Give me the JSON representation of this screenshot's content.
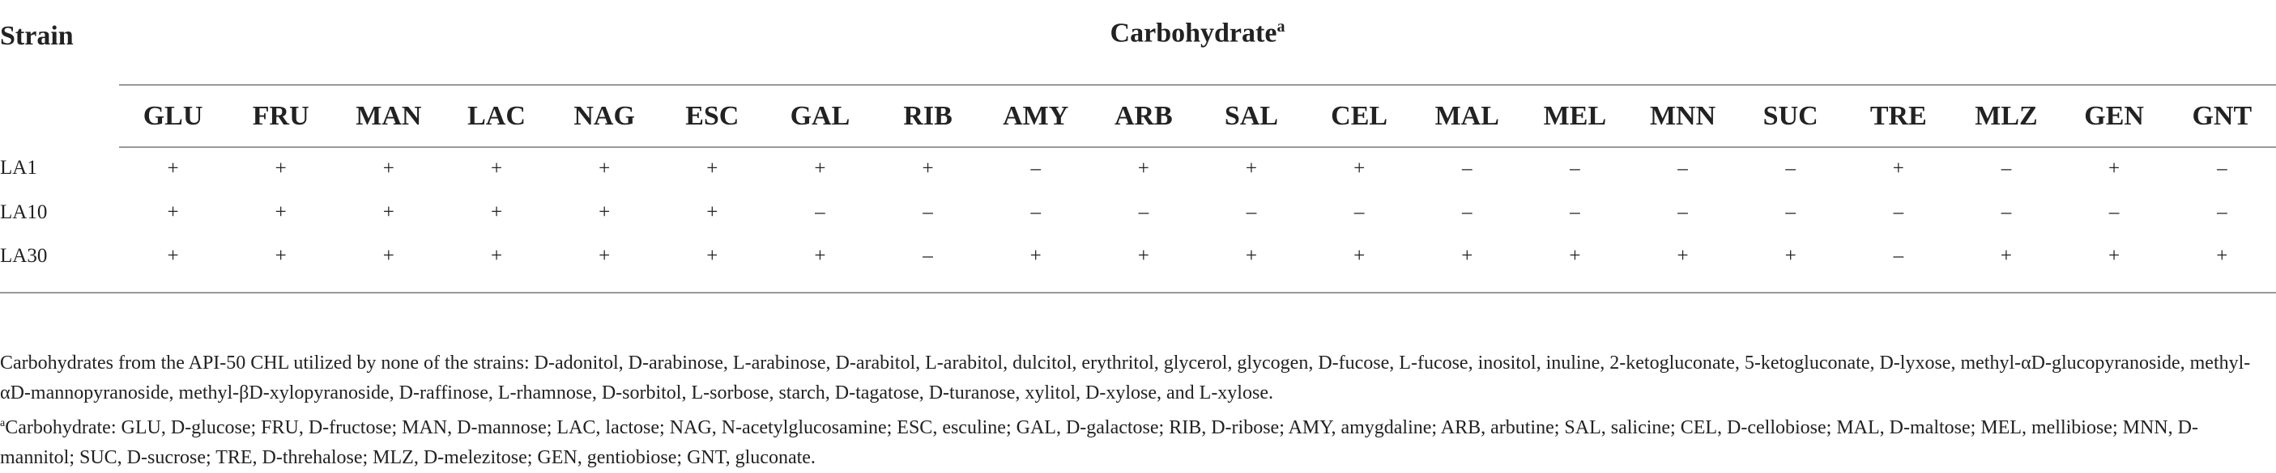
{
  "table": {
    "header": {
      "strain": "Strain",
      "group": "Carbohydrate",
      "group_marker": "a",
      "columns": [
        "GLU",
        "FRU",
        "MAN",
        "LAC",
        "NAG",
        "ESC",
        "GAL",
        "RIB",
        "AMY",
        "ARB",
        "SAL",
        "CEL",
        "MAL",
        "MEL",
        "MNN",
        "SUC",
        "TRE",
        "MLZ",
        "GEN",
        "GNT"
      ]
    },
    "rows": [
      {
        "strain": "LA1",
        "cells": [
          "+",
          "+",
          "+",
          "+",
          "+",
          "+",
          "+",
          "+",
          "–",
          "+",
          "+",
          "+",
          "–",
          "–",
          "–",
          "–",
          "+",
          "–",
          "+",
          "–"
        ]
      },
      {
        "strain": "LA10",
        "cells": [
          "+",
          "+",
          "+",
          "+",
          "+",
          "+",
          "–",
          "–",
          "–",
          "–",
          "–",
          "–",
          "–",
          "–",
          "–",
          "–",
          "–",
          "–",
          "–",
          "–"
        ]
      },
      {
        "strain": "LA30",
        "cells": [
          "+",
          "+",
          "+",
          "+",
          "+",
          "+",
          "+",
          "–",
          "+",
          "+",
          "+",
          "+",
          "+",
          "+",
          "+",
          "+",
          "–",
          "+",
          "+",
          "+"
        ]
      }
    ]
  },
  "footnotes": {
    "note": "Carbohydrates from the API-50 CHL utilized by none of the strains: D-adonitol, D-arabinose, L-arabinose, D-arabitol, L-arabitol, dulcitol, erythritol, glycerol, glycogen, D-fucose, L-fucose, inositol, inuline, 2-ketogluconate, 5-ketogluconate, D-lyxose, methyl-αD-glucopyranoside, methyl-αD-mannopyranoside, methyl-βD-xylopyranoside, D-raffinose, L-rhamnose, D-sorbitol, L-sorbose, starch, D-tagatose, D-turanose, xylitol, D-xylose, and L-xylose.",
    "marker": "a",
    "abbrev": "Carbohydrate: GLU, D-glucose; FRU, D-fructose; MAN, D-mannose; LAC, lactose; NAG, N-acetylglucosamine; ESC, esculine; GAL, D-galactose; RIB, D-ribose; AMY, amygdaline; ARB, arbutine; SAL, salicine; CEL, D-cellobiose; MAL, D-maltose; MEL, mellibiose; MNN, D-mannitol; SUC, D-sucrose; TRE, D-threhalose; MLZ, D-melezitose; GEN, gentiobiose; GNT, gluconate."
  }
}
